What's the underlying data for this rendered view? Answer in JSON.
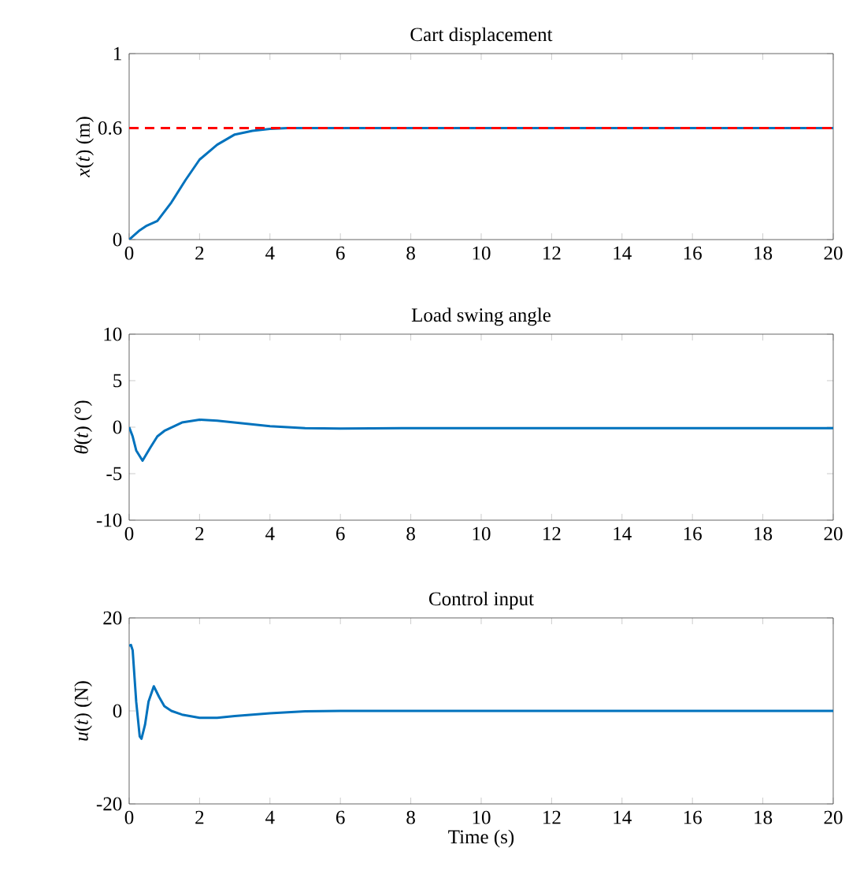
{
  "chart_data": [
    {
      "type": "line",
      "title": "Cart displacement",
      "ylabel": "*x*(*t*) (m)",
      "xlim": [
        0,
        20
      ],
      "ylim": [
        0,
        1
      ],
      "xticks": [
        0,
        2,
        4,
        6,
        8,
        10,
        12,
        14,
        16,
        18,
        20
      ],
      "yticks": [
        0,
        0.6,
        1
      ],
      "series": [
        {
          "color": "#0072bd",
          "x": [
            0,
            0.3,
            0.5,
            0.8,
            1.2,
            1.6,
            2,
            2.5,
            3,
            3.5,
            4,
            4.5,
            20
          ],
          "values": [
            0,
            0.05,
            0.075,
            0.1,
            0.2,
            0.32,
            0.43,
            0.51,
            0.565,
            0.585,
            0.595,
            0.6,
            0.6
          ]
        }
      ],
      "ref_lines": [
        {
          "axis": "y",
          "value": 0.6,
          "color": "#ff0000",
          "line_style": "dashed"
        }
      ]
    },
    {
      "type": "line",
      "title": "Load swing angle",
      "ylabel": "*θ*(*t*) (°)",
      "xlim": [
        0,
        20
      ],
      "ylim": [
        -10,
        10
      ],
      "xticks": [
        0,
        2,
        4,
        6,
        8,
        10,
        12,
        14,
        16,
        18,
        20
      ],
      "yticks": [
        -10,
        -5,
        0,
        5,
        10
      ],
      "series": [
        {
          "color": "#0072bd",
          "x": [
            0,
            0.1,
            0.2,
            0.38,
            0.6,
            0.8,
            1.0,
            1.5,
            2,
            2.5,
            3,
            4,
            5,
            6,
            8,
            20
          ],
          "values": [
            0,
            -1,
            -2.5,
            -3.6,
            -2.2,
            -1,
            -0.4,
            0.5,
            0.8,
            0.7,
            0.5,
            0.1,
            -0.1,
            -0.15,
            -0.1,
            -0.1
          ]
        }
      ]
    },
    {
      "type": "line",
      "title": "Control input",
      "xlabel": "Time (s)",
      "ylabel": "*u*(*t*) (N)",
      "xlim": [
        0,
        20
      ],
      "ylim": [
        -20,
        20
      ],
      "xticks": [
        0,
        2,
        4,
        6,
        8,
        10,
        12,
        14,
        16,
        18,
        20
      ],
      "yticks": [
        -20,
        0,
        20
      ],
      "series": [
        {
          "color": "#0072bd",
          "x": [
            0,
            0.05,
            0.1,
            0.2,
            0.3,
            0.35,
            0.45,
            0.55,
            0.7,
            0.85,
            1.0,
            1.2,
            1.5,
            2,
            2.5,
            3,
            4,
            5,
            6,
            20
          ],
          "values": [
            14,
            14.2,
            13,
            2,
            -5.5,
            -6,
            -3,
            2,
            5.3,
            3,
            1,
            0,
            -0.8,
            -1.5,
            -1.5,
            -1.1,
            -0.5,
            -0.1,
            0,
            0
          ]
        }
      ]
    }
  ]
}
